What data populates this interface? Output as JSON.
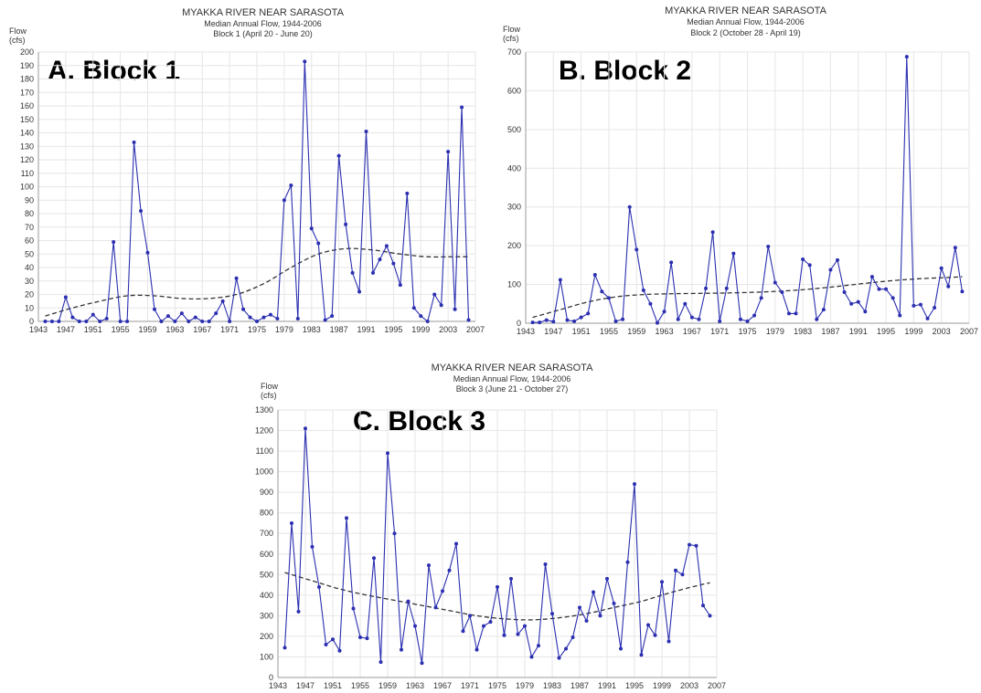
{
  "chart_data": [
    {
      "type": "line",
      "title": "MYAKKA RIVER NEAR SARASOTA",
      "subtitle": "Median Annual Flow, 1944-2006",
      "subtitle2": "Block 1 (April 20 - June 20)",
      "panel_label": "A.  Block 1",
      "ylabel_line1": "Flow",
      "ylabel_line2": "(cfs)",
      "xlim": [
        1943,
        2007
      ],
      "ylim": [
        0,
        200
      ],
      "xticks": [
        1943,
        1947,
        1951,
        1955,
        1959,
        1963,
        1967,
        1971,
        1975,
        1979,
        1983,
        1987,
        1991,
        1995,
        1999,
        2003,
        2007
      ],
      "yticks": [
        0,
        10,
        20,
        30,
        40,
        50,
        60,
        70,
        80,
        90,
        100,
        110,
        120,
        130,
        140,
        150,
        160,
        170,
        180,
        190,
        200
      ],
      "grid": true,
      "colors": {
        "series": "#2b2fb0",
        "trend": "#333333",
        "grid": "#e6e6e6"
      },
      "x": [
        1944,
        1945,
        1946,
        1947,
        1948,
        1949,
        1950,
        1951,
        1952,
        1953,
        1954,
        1955,
        1956,
        1957,
        1958,
        1959,
        1960,
        1961,
        1962,
        1963,
        1964,
        1965,
        1966,
        1967,
        1968,
        1969,
        1970,
        1971,
        1972,
        1973,
        1974,
        1975,
        1976,
        1977,
        1978,
        1979,
        1980,
        1981,
        1982,
        1983,
        1984,
        1985,
        1986,
        1987,
        1988,
        1989,
        1990,
        1991,
        1992,
        1993,
        1994,
        1995,
        1996,
        1997,
        1998,
        1999,
        2000,
        2001,
        2002,
        2003,
        2004,
        2005,
        2006
      ],
      "series": [
        {
          "values": [
            0,
            0,
            0,
            18,
            3,
            0,
            0,
            5,
            0,
            2,
            59,
            0,
            0,
            133,
            82,
            51,
            9,
            0,
            4,
            0,
            6,
            0,
            3,
            0,
            0,
            6,
            15,
            0,
            32,
            9,
            3,
            0,
            3,
            5,
            2,
            90,
            101,
            2,
            193,
            69,
            58,
            1,
            4,
            123,
            72,
            36,
            22,
            141,
            36,
            46,
            56,
            43,
            27,
            95,
            10,
            4,
            0,
            20,
            12,
            126,
            9,
            159,
            1
          ]
        },
        {
          "style": "dashed",
          "x": [
            1944,
            1948,
            1952,
            1956,
            1960,
            1964,
            1968,
            1972,
            1976,
            1980,
            1984,
            1988,
            1992,
            1996,
            2000,
            2004,
            2006
          ],
          "values": [
            4,
            10,
            15,
            19,
            19,
            17,
            17,
            20,
            28,
            40,
            50,
            54,
            53,
            50,
            48,
            48,
            48
          ]
        }
      ]
    },
    {
      "type": "line",
      "title": "MYAKKA RIVER NEAR SARASOTA",
      "subtitle": "Median Annual Flow, 1944-2006",
      "subtitle2": "Block 2 (October 28 - April 19)",
      "panel_label": "B.  Block 2",
      "ylabel_line1": "Flow",
      "ylabel_line2": "(cfs)",
      "xlim": [
        1943,
        2007
      ],
      "ylim": [
        0,
        700
      ],
      "xticks": [
        1943,
        1947,
        1951,
        1955,
        1959,
        1963,
        1967,
        1971,
        1975,
        1979,
        1983,
        1987,
        1991,
        1995,
        1999,
        2003,
        2007
      ],
      "yticks": [
        0,
        100,
        200,
        300,
        400,
        500,
        600,
        700
      ],
      "grid": true,
      "colors": {
        "series": "#2b2fb0",
        "trend": "#333333",
        "grid": "#e6e6e6"
      },
      "x": [
        1944,
        1945,
        1946,
        1947,
        1948,
        1949,
        1950,
        1951,
        1952,
        1953,
        1954,
        1955,
        1956,
        1957,
        1958,
        1959,
        1960,
        1961,
        1962,
        1963,
        1964,
        1965,
        1966,
        1967,
        1968,
        1969,
        1970,
        1971,
        1972,
        1973,
        1974,
        1975,
        1976,
        1977,
        1978,
        1979,
        1980,
        1981,
        1982,
        1983,
        1984,
        1985,
        1986,
        1987,
        1988,
        1989,
        1990,
        1991,
        1992,
        1993,
        1994,
        1995,
        1996,
        1997,
        1998,
        1999,
        2000,
        2001,
        2002,
        2003,
        2004,
        2005,
        2006
      ],
      "series": [
        {
          "values": [
            2,
            2,
            8,
            4,
            112,
            8,
            5,
            15,
            25,
            125,
            82,
            65,
            5,
            10,
            300,
            190,
            85,
            50,
            1,
            30,
            157,
            10,
            50,
            15,
            10,
            90,
            235,
            5,
            90,
            180,
            10,
            5,
            20,
            65,
            198,
            105,
            80,
            25,
            25,
            165,
            150,
            10,
            35,
            138,
            163,
            80,
            50,
            55,
            30,
            120,
            88,
            88,
            65,
            20,
            688,
            45,
            48,
            12,
            40,
            142,
            95,
            195,
            82
          ]
        },
        {
          "style": "dashed",
          "x": [
            1944,
            1948,
            1952,
            1956,
            1960,
            1964,
            1968,
            1972,
            1976,
            1980,
            1984,
            1988,
            1992,
            1996,
            2000,
            2004,
            2006
          ],
          "values": [
            15,
            35,
            55,
            68,
            74,
            76,
            77,
            78,
            80,
            83,
            88,
            95,
            103,
            110,
            115,
            118,
            120
          ]
        }
      ]
    },
    {
      "type": "line",
      "title": "MYAKKA RIVER NEAR SARASOTA",
      "subtitle": "Median Annual Flow, 1944-2006",
      "subtitle2": "Block 3 (June 21 - October 27)",
      "panel_label": "C.  Block 3",
      "ylabel_line1": "Flow",
      "ylabel_line2": "(cfs)",
      "xlim": [
        1943,
        2007
      ],
      "ylim": [
        0,
        1300
      ],
      "xticks": [
        1943,
        1947,
        1951,
        1955,
        1959,
        1963,
        1967,
        1971,
        1975,
        1979,
        1983,
        1987,
        1991,
        1995,
        1999,
        2003,
        2007
      ],
      "yticks": [
        0,
        100,
        200,
        300,
        400,
        500,
        600,
        700,
        800,
        900,
        1000,
        1100,
        1200,
        1300
      ],
      "grid": true,
      "colors": {
        "series": "#2b2fb0",
        "trend": "#333333",
        "grid": "#e6e6e6"
      },
      "x": [
        1944,
        1945,
        1946,
        1947,
        1948,
        1949,
        1950,
        1951,
        1952,
        1953,
        1954,
        1955,
        1956,
        1957,
        1958,
        1959,
        1960,
        1961,
        1962,
        1963,
        1964,
        1965,
        1966,
        1967,
        1968,
        1969,
        1970,
        1971,
        1972,
        1973,
        1974,
        1975,
        1976,
        1977,
        1978,
        1979,
        1980,
        1981,
        1982,
        1983,
        1984,
        1985,
        1986,
        1987,
        1988,
        1989,
        1990,
        1991,
        1992,
        1993,
        1994,
        1995,
        1996,
        1997,
        1998,
        1999,
        2000,
        2001,
        2002,
        2003,
        2004,
        2005,
        2006
      ],
      "series": [
        {
          "values": [
            145,
            750,
            320,
            1210,
            635,
            440,
            160,
            185,
            130,
            775,
            335,
            195,
            190,
            580,
            75,
            1090,
            700,
            135,
            370,
            250,
            70,
            545,
            340,
            420,
            520,
            650,
            225,
            300,
            135,
            250,
            270,
            440,
            205,
            480,
            210,
            250,
            100,
            155,
            550,
            310,
            95,
            140,
            195,
            340,
            275,
            415,
            300,
            480,
            360,
            140,
            560,
            940,
            110,
            255,
            205,
            465,
            175,
            520,
            500,
            645,
            640,
            350,
            300
          ]
        },
        {
          "style": "dashed",
          "x": [
            1944,
            1948,
            1952,
            1956,
            1960,
            1964,
            1968,
            1972,
            1976,
            1980,
            1984,
            1988,
            1992,
            1996,
            2000,
            2004,
            2006
          ],
          "values": [
            510,
            470,
            430,
            400,
            375,
            350,
            325,
            300,
            285,
            280,
            290,
            310,
            340,
            370,
            410,
            445,
            460
          ]
        }
      ]
    }
  ]
}
